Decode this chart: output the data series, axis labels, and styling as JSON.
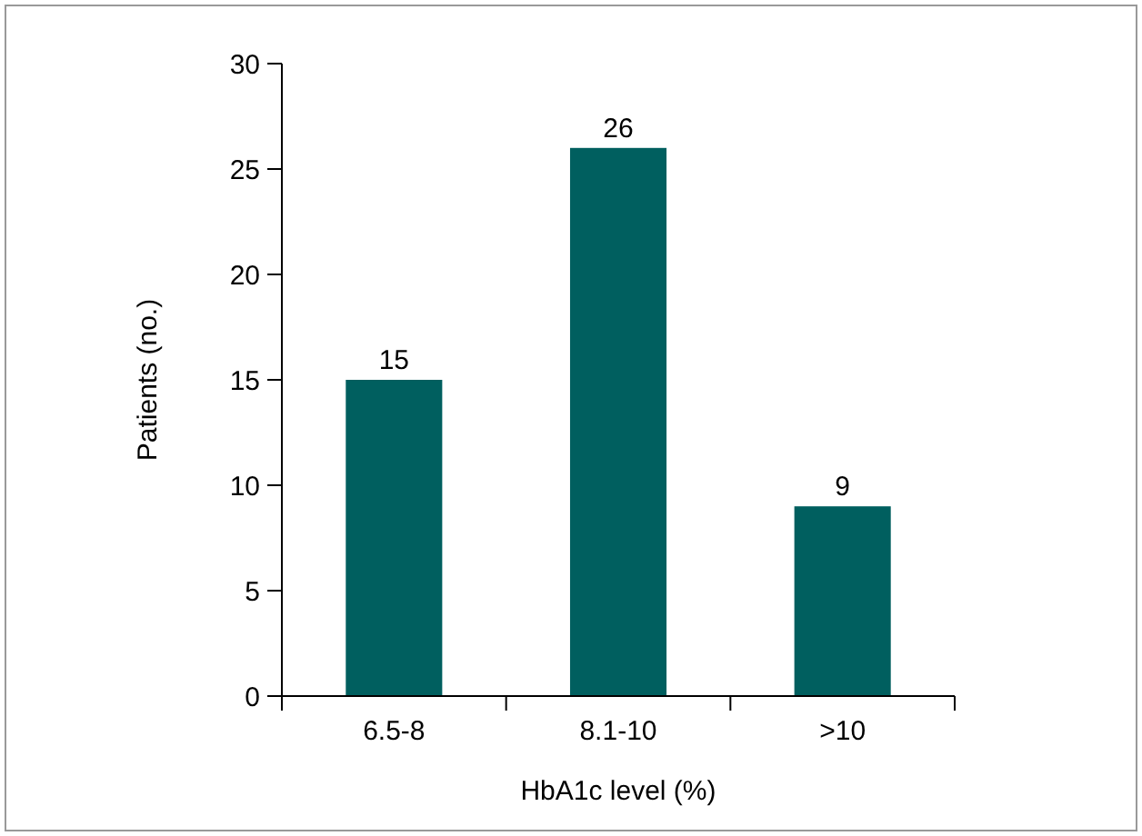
{
  "chart_data": {
    "type": "bar",
    "xlabel": "HbA1c level (%)",
    "ylabel": "Patients (no.)",
    "categories": [
      "6.5-8",
      "8.1-10",
      ">10"
    ],
    "values": [
      15,
      26,
      9
    ],
    "color": "#005f5f",
    "ylim": [
      0,
      30
    ],
    "yticks": [
      0,
      5,
      10,
      15,
      20,
      25,
      30
    ],
    "grid": false,
    "data_labels": true
  }
}
